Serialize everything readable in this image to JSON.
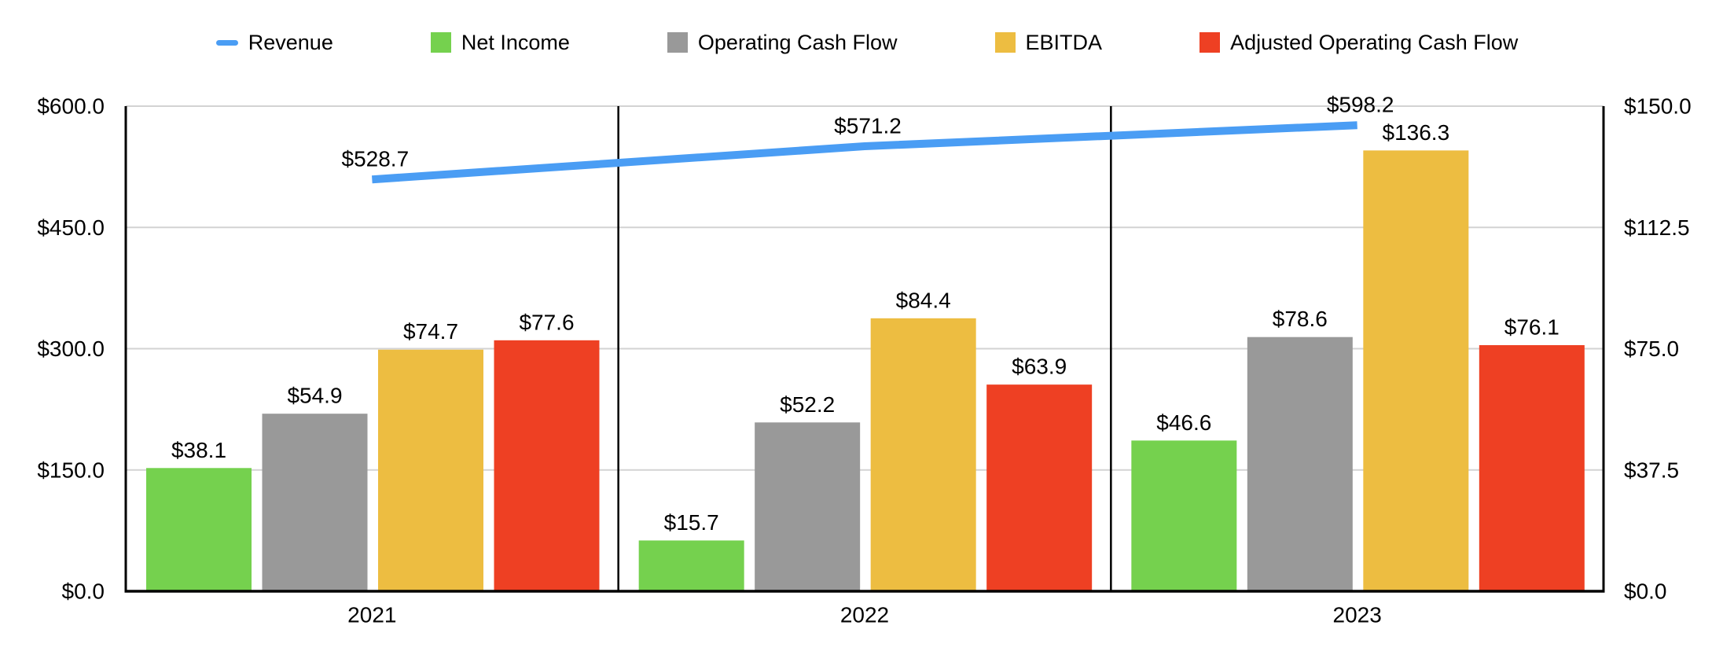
{
  "chart_data": {
    "type": "combo-bar-line",
    "title": "",
    "categories": [
      "2021",
      "2022",
      "2023"
    ],
    "series": [
      {
        "name": "Revenue",
        "kind": "line",
        "axis": "left",
        "color": "#4a9df4",
        "values": [
          528.7,
          571.2,
          598.2
        ],
        "labels": [
          "$528.7",
          "$571.2",
          "$598.2"
        ]
      },
      {
        "name": "Net Income",
        "kind": "bar",
        "axis": "right",
        "color": "#75d14e",
        "values": [
          38.1,
          15.7,
          46.6
        ],
        "labels": [
          "$38.1",
          "$15.7",
          "$46.6"
        ]
      },
      {
        "name": "Operating Cash Flow",
        "kind": "bar",
        "axis": "right",
        "color": "#999999",
        "values": [
          54.9,
          52.2,
          78.6
        ],
        "labels": [
          "$54.9",
          "$52.2",
          "$78.6"
        ]
      },
      {
        "name": "EBITDA",
        "kind": "bar",
        "axis": "right",
        "color": "#edbd41",
        "values": [
          74.7,
          84.4,
          136.3
        ],
        "labels": [
          "$74.7",
          "$84.4",
          "$136.3"
        ]
      },
      {
        "name": "Adjusted Operating Cash Flow",
        "kind": "bar",
        "axis": "right",
        "color": "#ee4023",
        "values": [
          77.6,
          63.9,
          76.1
        ],
        "labels": [
          "$77.6",
          "$63.9",
          "$76.1"
        ]
      }
    ],
    "left_axis": {
      "min": 0,
      "max": 600,
      "tick_values": [
        600,
        450,
        300,
        150,
        0
      ],
      "tick_labels": [
        "$600.0",
        "$450.0",
        "$300.0",
        "$150.0",
        "$0.0"
      ]
    },
    "right_axis": {
      "min": 0,
      "max": 150,
      "tick_values": [
        150,
        112.5,
        75,
        37.5,
        0
      ],
      "tick_labels": [
        "$150.0",
        "$112.5",
        "$75.0",
        "$37.5",
        "$0.0"
      ]
    },
    "grid": true,
    "legend_position": "top",
    "colors": {
      "grid_line": "#d3d3d3",
      "axis_line": "#000000",
      "text": "#000000",
      "background": "#ffffff"
    }
  }
}
